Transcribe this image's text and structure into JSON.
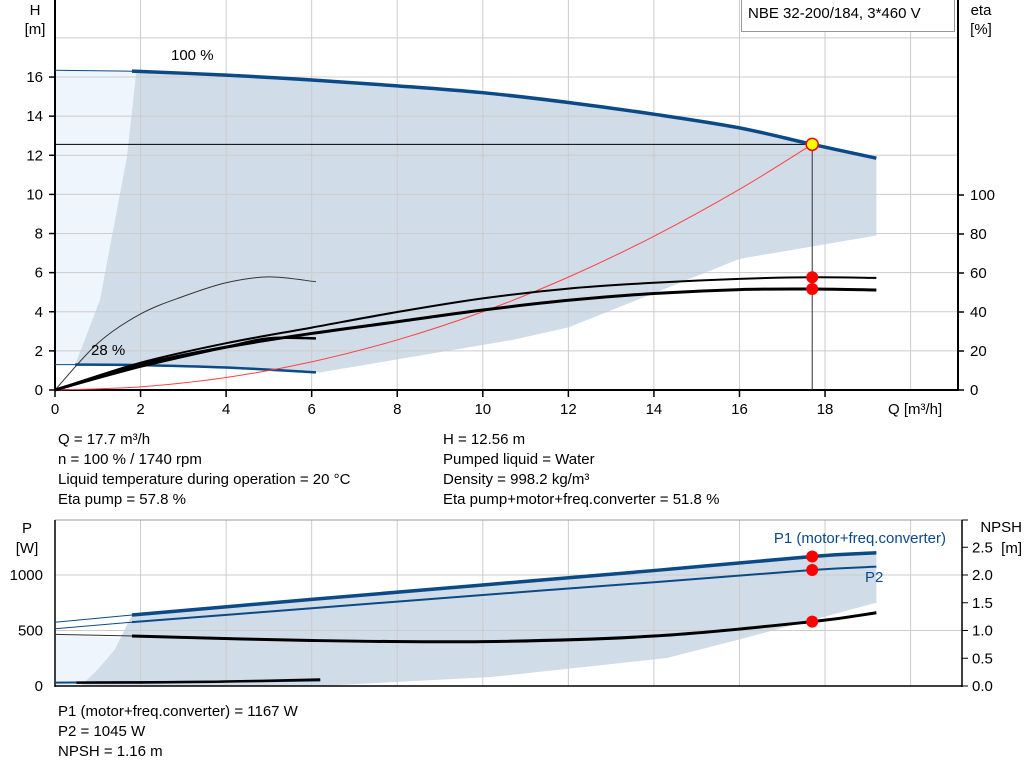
{
  "legend_title": "NBE 32-200/184, 3*460 V",
  "colors": {
    "curve_blue": "#0b4a86",
    "area": "#d0dce8",
    "area_light": "#eef5fd",
    "system_curve": "#ff4040",
    "marker": "#ff0000",
    "duty_point": "#ffff00",
    "grid": "#cccccc"
  },
  "chart_data": [
    {
      "type": "line",
      "title": "",
      "xlabel": "Q [m³/h]",
      "ylabel": "H\n[m]",
      "ylabel_lines": [
        "H",
        "[m]"
      ],
      "y2label_lines": [
        "eta",
        "[%]"
      ],
      "xlim": [
        0,
        21
      ],
      "ylim": [
        0,
        20
      ],
      "y2lim": [
        0,
        200
      ],
      "xticks": [
        0,
        2,
        4,
        6,
        8,
        10,
        12,
        14,
        16,
        18
      ],
      "yticks": [
        0,
        2,
        4,
        6,
        8,
        10,
        12,
        14,
        16
      ],
      "y2ticks": [
        0,
        20,
        40,
        60,
        80,
        100
      ],
      "grid": true,
      "annotations": [
        "100 %",
        "28 %"
      ],
      "series": [
        {
          "name": "100 %",
          "axis": "H",
          "x": [
            0,
            1.8,
            4,
            6,
            8,
            10,
            12,
            14,
            16,
            17.7,
            19.2
          ],
          "y": [
            16.35,
            16.3,
            16.1,
            15.85,
            15.55,
            15.2,
            14.7,
            14.1,
            13.4,
            12.56,
            11.85
          ]
        },
        {
          "name": "28 %",
          "axis": "H",
          "x": [
            0,
            0.47,
            1.8,
            4,
            6.1
          ],
          "y": [
            1.3,
            1.3,
            1.28,
            1.15,
            0.9
          ]
        },
        {
          "axis": "eta",
          "label": "Eta pump",
          "x": [
            0,
            2,
            4,
            6,
            8,
            10,
            12,
            14,
            16,
            17.7,
            19.2
          ],
          "y": [
            0,
            14,
            24,
            32,
            40,
            47,
            52,
            55,
            57,
            57.8,
            57.5
          ]
        },
        {
          "axis": "eta",
          "label": "Eta pump+motor+freq.converter",
          "x": [
            0,
            2,
            4,
            6,
            8,
            10,
            12,
            14,
            16,
            17.7,
            19.2
          ],
          "y": [
            0,
            13,
            22,
            29,
            35,
            41,
            46,
            49.5,
            51.5,
            51.8,
            51.3
          ]
        },
        {
          "axis": "eta",
          "label": "Eta pump 28 %",
          "x": [
            0,
            1,
            2,
            3,
            4,
            5,
            6.1
          ],
          "y": [
            0,
            24,
            39,
            48,
            55,
            58,
            55.5
          ]
        },
        {
          "axis": "eta",
          "label": "Eta total 28 %",
          "x": [
            0,
            2,
            4,
            5,
            6.1
          ],
          "y": [
            0,
            12,
            22,
            26.5,
            26.5
          ]
        },
        {
          "axis": "H",
          "label": "system curve",
          "x": [
            0,
            2,
            4,
            6,
            8,
            10,
            12,
            14,
            16,
            17.7
          ],
          "y": [
            0,
            0.16,
            0.64,
            1.44,
            2.56,
            4.0,
            5.77,
            7.86,
            10.26,
            12.56
          ]
        }
      ],
      "operating_area": {
        "upper": {
          "x": [
            1.8,
            4,
            6,
            8,
            10,
            12,
            14,
            16,
            17.7,
            19.2
          ],
          "y": [
            16.3,
            16.1,
            15.85,
            15.55,
            15.2,
            14.7,
            14.1,
            13.4,
            12.56,
            11.85
          ]
        },
        "lower": {
          "x": [
            19.2,
            16,
            12,
            10.7,
            6.2,
            4,
            1.8,
            0.47
          ],
          "y": [
            7.9,
            6.7,
            3.2,
            2.56,
            0.9,
            1.15,
            1.28,
            1.3
          ]
        },
        "left": {
          "x": [
            0.47,
            0.58,
            1.05,
            1.68,
            1.9
          ],
          "y": [
            1.3,
            1.9,
            4.6,
            11.9,
            16.3
          ]
        }
      },
      "duty_point": {
        "Q": 17.7,
        "H": 12.56,
        "eta_pump": 57.8,
        "eta_total": 51.8
      }
    },
    {
      "type": "line",
      "title": "",
      "ylabel_lines": [
        "P",
        "[W]"
      ],
      "y2label_lines": [
        "NPSH",
        "[m]"
      ],
      "xlim": [
        0,
        21
      ],
      "ylim": [
        0,
        1500
      ],
      "y2lim": [
        0,
        3
      ],
      "yticks": [
        0,
        500,
        1000
      ],
      "y2ticks": [
        "0.0",
        "0.5",
        "1.0",
        "1.5",
        "2.0",
        "2.5"
      ],
      "grid": true,
      "series": [
        {
          "name": "P1 (motor+freq.converter)",
          "axis": "P",
          "x": [
            0,
            1.8,
            6,
            10,
            14,
            17.7,
            19.2
          ],
          "y": [
            575,
            640,
            780,
            910,
            1040,
            1167,
            1200
          ]
        },
        {
          "name": "P2",
          "axis": "P",
          "x": [
            0,
            1.8,
            6,
            10,
            14,
            17.7,
            19.2
          ],
          "y": [
            515,
            575,
            700,
            820,
            935,
            1045,
            1075
          ]
        },
        {
          "axis": "NPSH",
          "label": "NPSH",
          "x": [
            0,
            1.8,
            6,
            10,
            14,
            17.7,
            19.2
          ],
          "y": [
            0.93,
            0.9,
            0.82,
            0.8,
            0.9,
            1.16,
            1.32
          ]
        },
        {
          "axis": "P",
          "label": "P1 28 %",
          "x": [
            0,
            1.8,
            4,
            6.2
          ],
          "y": [
            30,
            35,
            40,
            50
          ]
        },
        {
          "axis": "P",
          "label": "P2 28 %",
          "x": [
            0.5,
            2,
            4,
            6.2
          ],
          "y": [
            30,
            32,
            40,
            58
          ]
        }
      ],
      "operating_area": {
        "upper": {
          "x": [
            1.8,
            6,
            10,
            14,
            17.7,
            19.2
          ],
          "y": [
            640,
            780,
            910,
            1040,
            1167,
            1200
          ]
        },
        "lower": {
          "x": [
            19.2,
            16,
            14.3,
            10.2,
            6.2,
            0.6
          ],
          "y": [
            750,
            420,
            252,
            81,
            0,
            0
          ]
        },
        "left": {
          "x": [
            0.6,
            1.0,
            1.4,
            1.8
          ],
          "y": [
            0,
            150,
            330,
            640
          ]
        }
      },
      "duty_point": {
        "P1": 1167,
        "P2": 1045,
        "NPSH": 1.16
      }
    }
  ],
  "info_left": [
    "Q = 17.7 m³/h",
    "n = 100 % / 1740 rpm",
    "Liquid temperature during operation = 20 °C",
    "Eta pump = 57.8 %"
  ],
  "info_right": [
    "H = 12.56 m",
    "Pumped liquid = Water",
    "Density = 998.2 kg/m³",
    "Eta pump+motor+freq.converter = 51.8 %"
  ],
  "info_bottom": [
    "P1 (motor+freq.converter) = 1167 W",
    "P2 = 1045 W",
    "NPSH = 1.16 m"
  ]
}
